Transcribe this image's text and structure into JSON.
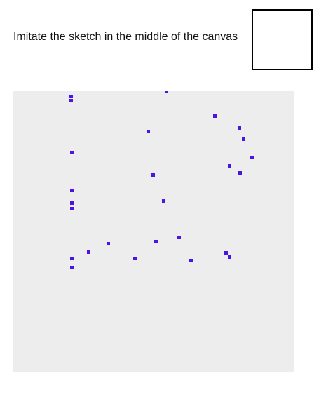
{
  "instruction": {
    "text": "Imitate the sketch in the middle of the canvas"
  },
  "sketch_preview": {
    "border_color": "#000000"
  },
  "canvas": {
    "background_color": "#ededed",
    "point_color": "#4b14e6",
    "point_count": 24
  }
}
